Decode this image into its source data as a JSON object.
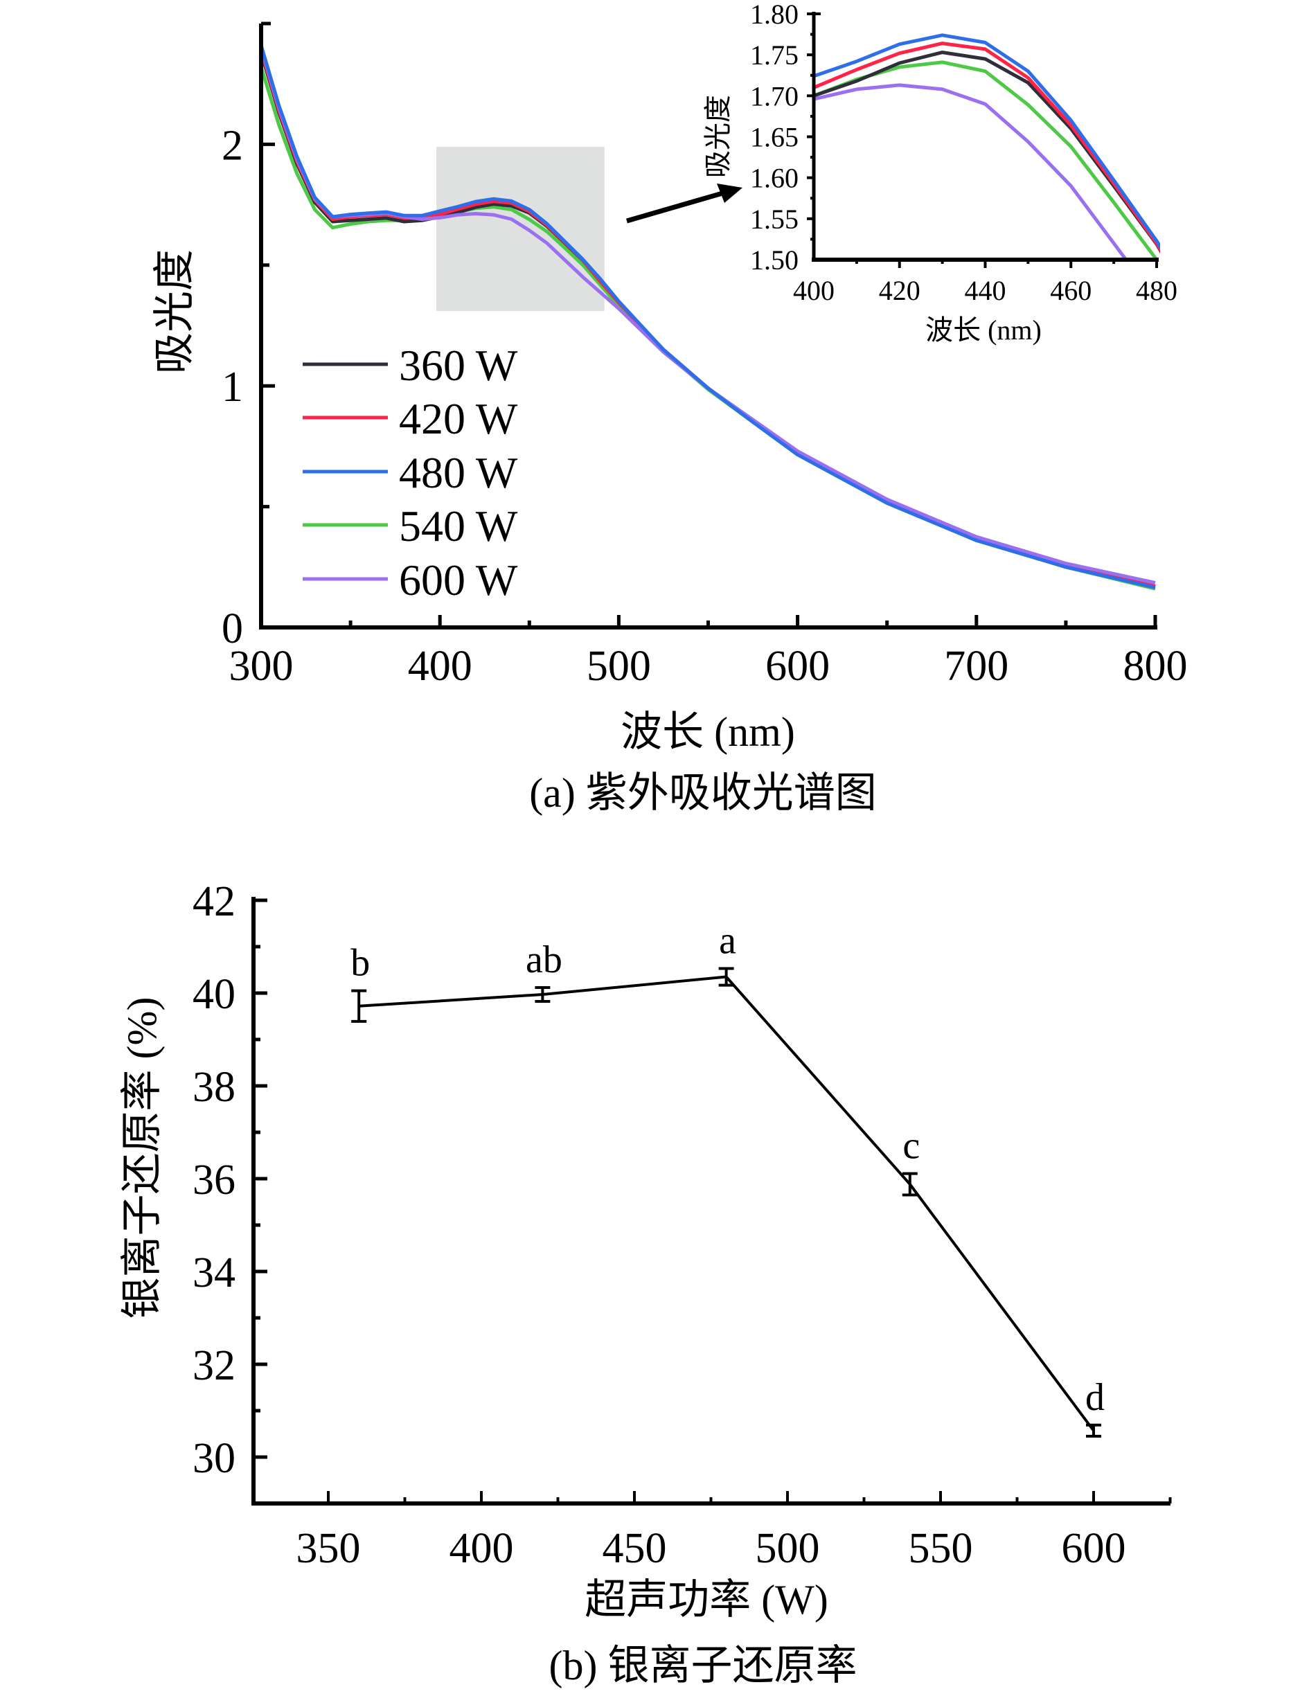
{
  "chart_data": [
    {
      "id": "a",
      "type": "line",
      "caption": "(a) 紫外吸收光谱图",
      "xlabel": "波长 (nm)",
      "ylabel": "吸光度",
      "xlim": [
        300,
        800
      ],
      "ylim": [
        0,
        2.5
      ],
      "xticks": [
        300,
        400,
        500,
        600,
        700,
        800
      ],
      "yticks": [
        0,
        1,
        2
      ],
      "legend_placement": "center-left",
      "highlight_region": {
        "x": [
          398,
          492
        ],
        "y": [
          1.31,
          1.99
        ]
      },
      "x": [
        300,
        310,
        320,
        330,
        340,
        350,
        360,
        370,
        380,
        390,
        400,
        410,
        420,
        430,
        440,
        450,
        460,
        470,
        480,
        490,
        500,
        525,
        550,
        575,
        600,
        650,
        700,
        750,
        800
      ],
      "series": [
        {
          "name": "360 W",
          "color": "#2f2e3a",
          "values": [
            2.38,
            2.13,
            1.92,
            1.76,
            1.68,
            1.685,
            1.69,
            1.695,
            1.68,
            1.685,
            1.7,
            1.718,
            1.74,
            1.753,
            1.745,
            1.716,
            1.66,
            1.59,
            1.519,
            1.43,
            1.345,
            1.15,
            0.99,
            0.855,
            0.72,
            0.52,
            0.365,
            0.255,
            0.17
          ]
        },
        {
          "name": "420 W",
          "color": "#ff2447",
          "values": [
            2.39,
            2.14,
            1.93,
            1.77,
            1.69,
            1.7,
            1.705,
            1.71,
            1.695,
            1.695,
            1.71,
            1.732,
            1.752,
            1.764,
            1.757,
            1.722,
            1.664,
            1.593,
            1.52,
            1.43,
            1.345,
            1.15,
            0.99,
            0.855,
            0.72,
            0.52,
            0.365,
            0.255,
            0.17
          ]
        },
        {
          "name": "480 W",
          "color": "#2e6ee8",
          "values": [
            2.41,
            2.16,
            1.95,
            1.78,
            1.7,
            1.71,
            1.715,
            1.72,
            1.705,
            1.705,
            1.724,
            1.742,
            1.763,
            1.774,
            1.765,
            1.73,
            1.67,
            1.597,
            1.523,
            1.44,
            1.35,
            1.15,
            0.99,
            0.85,
            0.715,
            0.515,
            0.36,
            0.25,
            0.165
          ]
        },
        {
          "name": "540 W",
          "color": "#4cc945",
          "values": [
            2.32,
            2.08,
            1.88,
            1.73,
            1.655,
            1.67,
            1.68,
            1.685,
            1.685,
            1.69,
            1.7,
            1.72,
            1.735,
            1.741,
            1.73,
            1.689,
            1.638,
            1.57,
            1.5,
            1.415,
            1.33,
            1.145,
            0.985,
            0.85,
            0.715,
            0.515,
            0.36,
            0.25,
            0.16
          ]
        },
        {
          "name": "600 W",
          "color": "#9b70f0",
          "values": [
            2.4,
            2.15,
            1.94,
            1.775,
            1.7,
            1.705,
            1.71,
            1.715,
            1.7,
            1.69,
            1.696,
            1.708,
            1.713,
            1.708,
            1.69,
            1.644,
            1.59,
            1.52,
            1.45,
            1.385,
            1.32,
            1.14,
            0.99,
            0.86,
            0.73,
            0.53,
            0.375,
            0.265,
            0.185
          ]
        }
      ],
      "inset": {
        "xlabel": "波长 (nm)",
        "ylabel": "吸光度",
        "xlim": [
          400,
          480
        ],
        "ylim": [
          1.5,
          1.8
        ],
        "xticks": [
          "400",
          "420",
          "440",
          "460",
          "480"
        ],
        "yticks": [
          "1.50",
          "1.55",
          "1.60",
          "1.65",
          "1.70",
          "1.75",
          "1.80"
        ]
      }
    },
    {
      "id": "b",
      "type": "line",
      "caption": "(b) 银离子还原率",
      "xlabel": "超声功率 (W)",
      "ylabel": "银离子还原率 (%)",
      "xlim": [
        325,
        625
      ],
      "ylim": [
        29,
        42
      ],
      "xticks": [
        "350",
        "400",
        "450",
        "500",
        "550",
        "600"
      ],
      "yticks": [
        "30",
        "32",
        "34",
        "36",
        "38",
        "40",
        "42"
      ],
      "x": [
        360,
        420,
        480,
        540,
        600
      ],
      "values": [
        39.72,
        39.97,
        40.35,
        35.88,
        30.57
      ],
      "errors": [
        0.33,
        0.15,
        0.18,
        0.23,
        0.12
      ],
      "labels": [
        "b",
        "ab",
        "a",
        "c",
        "d"
      ],
      "color": "#000000"
    }
  ]
}
